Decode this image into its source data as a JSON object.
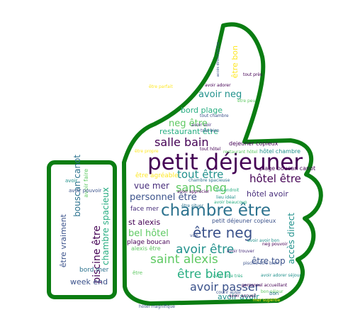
{
  "colors": {
    "outline": "#0a7d12",
    "background": "#ffffff",
    "palette": [
      "#440154",
      "#3b528b",
      "#21918c",
      "#5ec962",
      "#fde725",
      "#2c728e",
      "#27ad81",
      "#472d7b"
    ]
  },
  "words": [
    "petit déjeuner",
    "chambre être",
    "être neg",
    "salle bain",
    "avoir être",
    "saint alexis",
    "être bien",
    "avoir passer",
    "tout être",
    "hôtel être",
    "sans neg",
    "vue mer",
    "personnel être",
    "piscine être",
    "bouscan canot",
    "être vraiment",
    "chambre spacieux",
    "week end",
    "bord plage",
    "neg être",
    "avoir neg",
    "restaurant être",
    "être bon",
    "accès direct",
    "être top",
    "hôtel avoir",
    "plage boucan canot",
    "bel hôtel",
    "st alexis",
    "avoir avoir",
    "être agréable",
    "face mer",
    "dejeuner copieux",
    "petit déjeuner copieux",
    "hôtel chambre",
    "plage boucan",
    "alexis être",
    "bord mer",
    "avoir faire",
    "être propre",
    "tout chambre",
    "accès direct piscine",
    "personnel accueillant",
    "avoir pouvoir",
    "avoir adorer",
    "bon séjour",
    "lieu idéal",
    "être situer",
    "bel endroit",
    "tout hôtel",
    "courir aussi",
    "être peu",
    "avoir trouver",
    "avoir beaucoup",
    "avoir avoir bon",
    "mer superbe",
    "piscine être bien",
    "neg pouvoir",
    "hôtel magnifique",
    "avoir apprécier",
    "tout près",
    "chambre spacieuse",
    "restaurant hôtel",
    "avoir adorer séjour",
    "être parfait",
    "avoir accueil",
    "très bien",
    "avoir être très",
    "avoir voir",
    "vue",
    "être",
    "avoir",
    "bon"
  ]
}
